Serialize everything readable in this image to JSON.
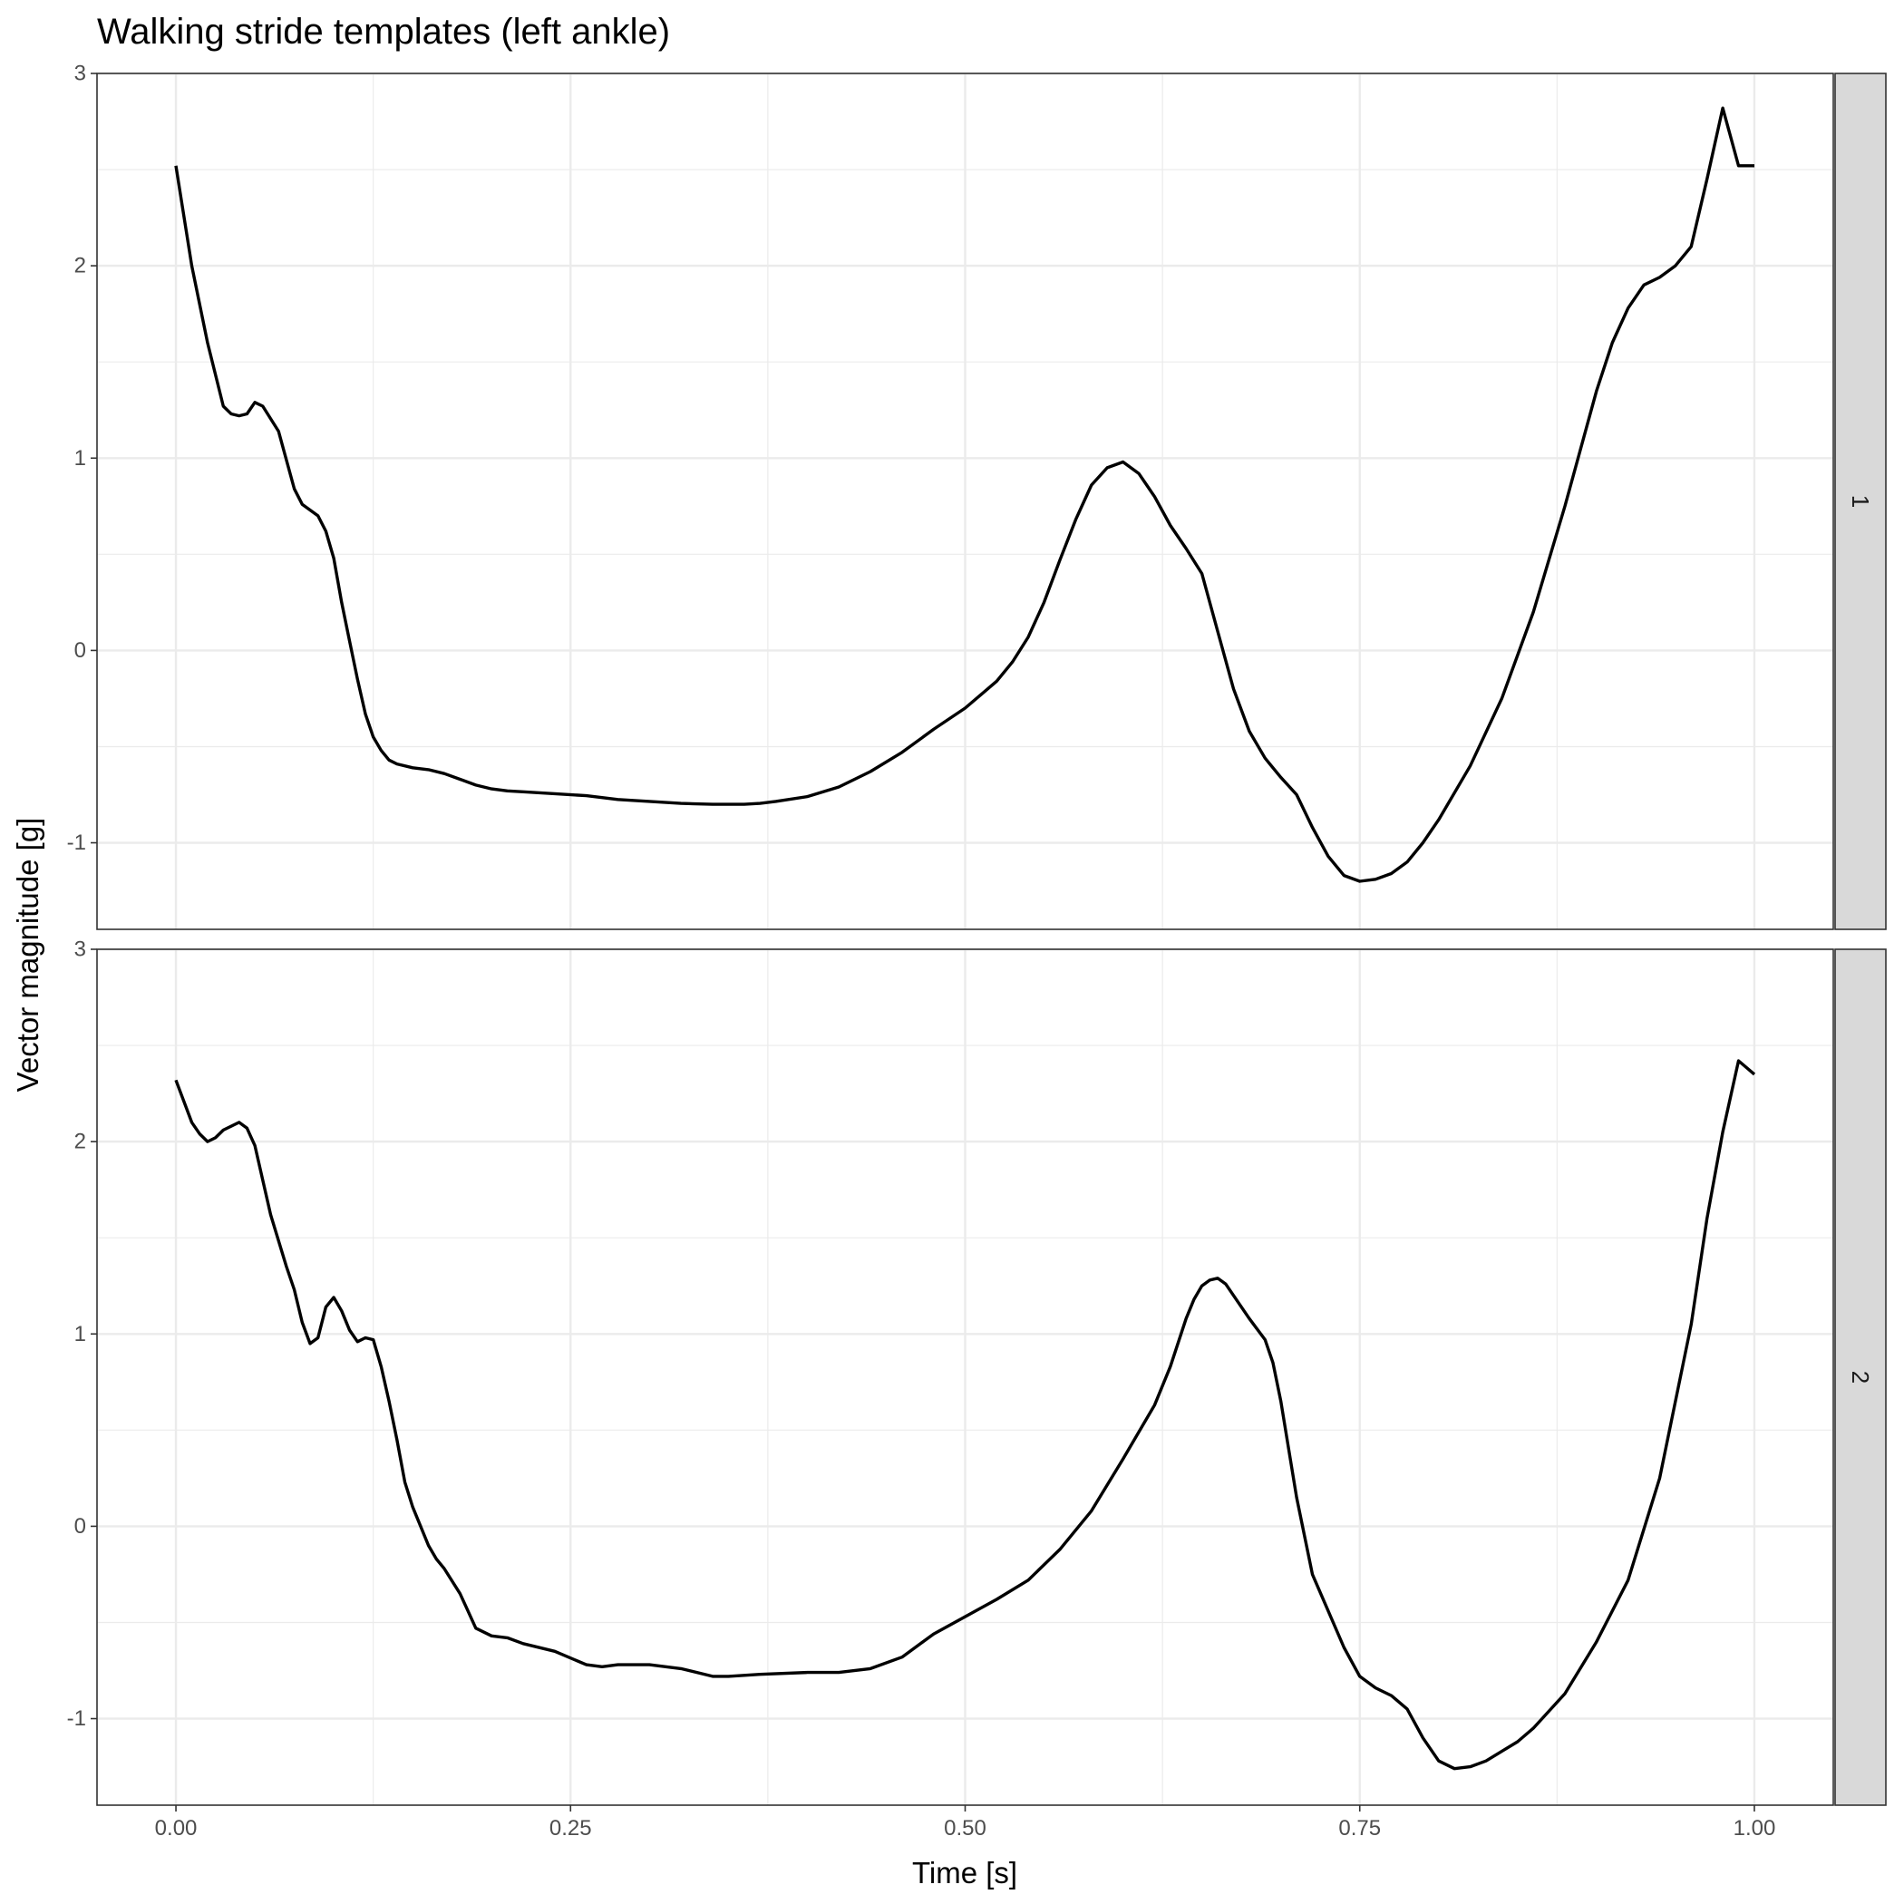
{
  "chart_data": {
    "type": "line",
    "title": "Walking stride templates (left ankle)",
    "xlabel": "Time [s]",
    "ylabel": "Vector magnitude [g]",
    "xlim": [
      -0.05,
      1.05
    ],
    "ylim": [
      -1.45,
      3.0
    ],
    "x_ticks": [
      0.0,
      0.25,
      0.5,
      0.75,
      1.0
    ],
    "x_tick_labels": [
      "0.00",
      "0.25",
      "0.50",
      "0.75",
      "1.00"
    ],
    "y_ticks": [
      -1,
      0,
      1,
      2,
      3
    ],
    "y_tick_labels": [
      "-1",
      "0",
      "1",
      "2",
      "3"
    ],
    "grid": true,
    "legend": "none",
    "line_color": "#000000",
    "strip_color": "#d9d9d9",
    "facets": [
      {
        "strip_label": "1",
        "x": [
          0.0,
          0.01,
          0.02,
          0.03,
          0.035,
          0.04,
          0.045,
          0.05,
          0.055,
          0.065,
          0.075,
          0.08,
          0.09,
          0.095,
          0.1,
          0.105,
          0.11,
          0.115,
          0.12,
          0.125,
          0.13,
          0.135,
          0.14,
          0.15,
          0.16,
          0.17,
          0.18,
          0.19,
          0.2,
          0.21,
          0.22,
          0.24,
          0.26,
          0.28,
          0.3,
          0.32,
          0.34,
          0.36,
          0.37,
          0.38,
          0.4,
          0.42,
          0.44,
          0.46,
          0.48,
          0.5,
          0.51,
          0.52,
          0.53,
          0.54,
          0.55,
          0.56,
          0.57,
          0.58,
          0.59,
          0.6,
          0.61,
          0.62,
          0.63,
          0.64,
          0.65,
          0.66,
          0.67,
          0.68,
          0.69,
          0.7,
          0.71,
          0.72,
          0.73,
          0.74,
          0.75,
          0.76,
          0.77,
          0.78,
          0.79,
          0.8,
          0.82,
          0.84,
          0.86,
          0.88,
          0.9,
          0.91,
          0.92,
          0.93,
          0.94,
          0.95,
          0.96,
          0.97,
          0.98,
          0.99,
          1.0
        ],
        "y": [
          2.52,
          2.0,
          1.6,
          1.27,
          1.23,
          1.22,
          1.23,
          1.29,
          1.27,
          1.14,
          0.84,
          0.76,
          0.7,
          0.62,
          0.48,
          0.25,
          0.05,
          -0.15,
          -0.33,
          -0.45,
          -0.52,
          -0.57,
          -0.59,
          -0.61,
          -0.62,
          -0.64,
          -0.67,
          -0.7,
          -0.72,
          -0.73,
          -0.735,
          -0.745,
          -0.755,
          -0.775,
          -0.785,
          -0.795,
          -0.8,
          -0.8,
          -0.795,
          -0.785,
          -0.76,
          -0.71,
          -0.63,
          -0.53,
          -0.41,
          -0.3,
          -0.23,
          -0.16,
          -0.06,
          0.07,
          0.25,
          0.47,
          0.68,
          0.86,
          0.95,
          0.98,
          0.92,
          0.8,
          0.65,
          0.53,
          0.4,
          0.1,
          -0.2,
          -0.42,
          -0.56,
          -0.66,
          -0.75,
          -0.92,
          -1.07,
          -1.17,
          -1.2,
          -1.19,
          -1.16,
          -1.1,
          -1.0,
          -0.88,
          -0.6,
          -0.25,
          0.2,
          0.75,
          1.35,
          1.6,
          1.78,
          1.9,
          1.94,
          2.0,
          2.1,
          2.45,
          2.82,
          2.52,
          2.52
        ]
      },
      {
        "strip_label": "2",
        "x": [
          0.0,
          0.01,
          0.015,
          0.02,
          0.025,
          0.03,
          0.04,
          0.045,
          0.05,
          0.055,
          0.06,
          0.07,
          0.075,
          0.08,
          0.085,
          0.09,
          0.095,
          0.1,
          0.105,
          0.11,
          0.115,
          0.12,
          0.125,
          0.13,
          0.135,
          0.14,
          0.145,
          0.15,
          0.16,
          0.165,
          0.17,
          0.18,
          0.185,
          0.19,
          0.2,
          0.21,
          0.22,
          0.24,
          0.26,
          0.27,
          0.28,
          0.3,
          0.32,
          0.34,
          0.35,
          0.37,
          0.4,
          0.42,
          0.44,
          0.46,
          0.48,
          0.5,
          0.52,
          0.54,
          0.56,
          0.58,
          0.6,
          0.62,
          0.63,
          0.64,
          0.645,
          0.65,
          0.655,
          0.66,
          0.665,
          0.67,
          0.68,
          0.69,
          0.695,
          0.7,
          0.705,
          0.71,
          0.715,
          0.72,
          0.73,
          0.74,
          0.75,
          0.76,
          0.77,
          0.78,
          0.79,
          0.8,
          0.81,
          0.82,
          0.83,
          0.84,
          0.85,
          0.86,
          0.88,
          0.9,
          0.92,
          0.94,
          0.96,
          0.97,
          0.98,
          0.99,
          1.0
        ],
        "y": [
          2.32,
          2.1,
          2.04,
          2.0,
          2.02,
          2.06,
          2.1,
          2.07,
          1.98,
          1.8,
          1.62,
          1.35,
          1.23,
          1.06,
          0.95,
          0.98,
          1.14,
          1.19,
          1.12,
          1.02,
          0.96,
          0.98,
          0.97,
          0.83,
          0.65,
          0.45,
          0.23,
          0.1,
          -0.1,
          -0.17,
          -0.22,
          -0.35,
          -0.44,
          -0.53,
          -0.57,
          -0.58,
          -0.61,
          -0.65,
          -0.72,
          -0.73,
          -0.72,
          -0.72,
          -0.74,
          -0.78,
          -0.78,
          -0.77,
          -0.76,
          -0.76,
          -0.74,
          -0.68,
          -0.56,
          -0.47,
          -0.38,
          -0.28,
          -0.12,
          0.08,
          0.35,
          0.63,
          0.83,
          1.08,
          1.18,
          1.25,
          1.28,
          1.29,
          1.26,
          1.2,
          1.08,
          0.97,
          0.85,
          0.65,
          0.4,
          0.15,
          -0.05,
          -0.25,
          -0.44,
          -0.63,
          -0.78,
          -0.84,
          -0.88,
          -0.95,
          -1.1,
          -1.22,
          -1.26,
          -1.25,
          -1.22,
          -1.17,
          -1.12,
          -1.05,
          -0.87,
          -0.6,
          -0.28,
          0.25,
          1.05,
          1.6,
          2.05,
          2.42,
          2.35
        ]
      }
    ]
  }
}
